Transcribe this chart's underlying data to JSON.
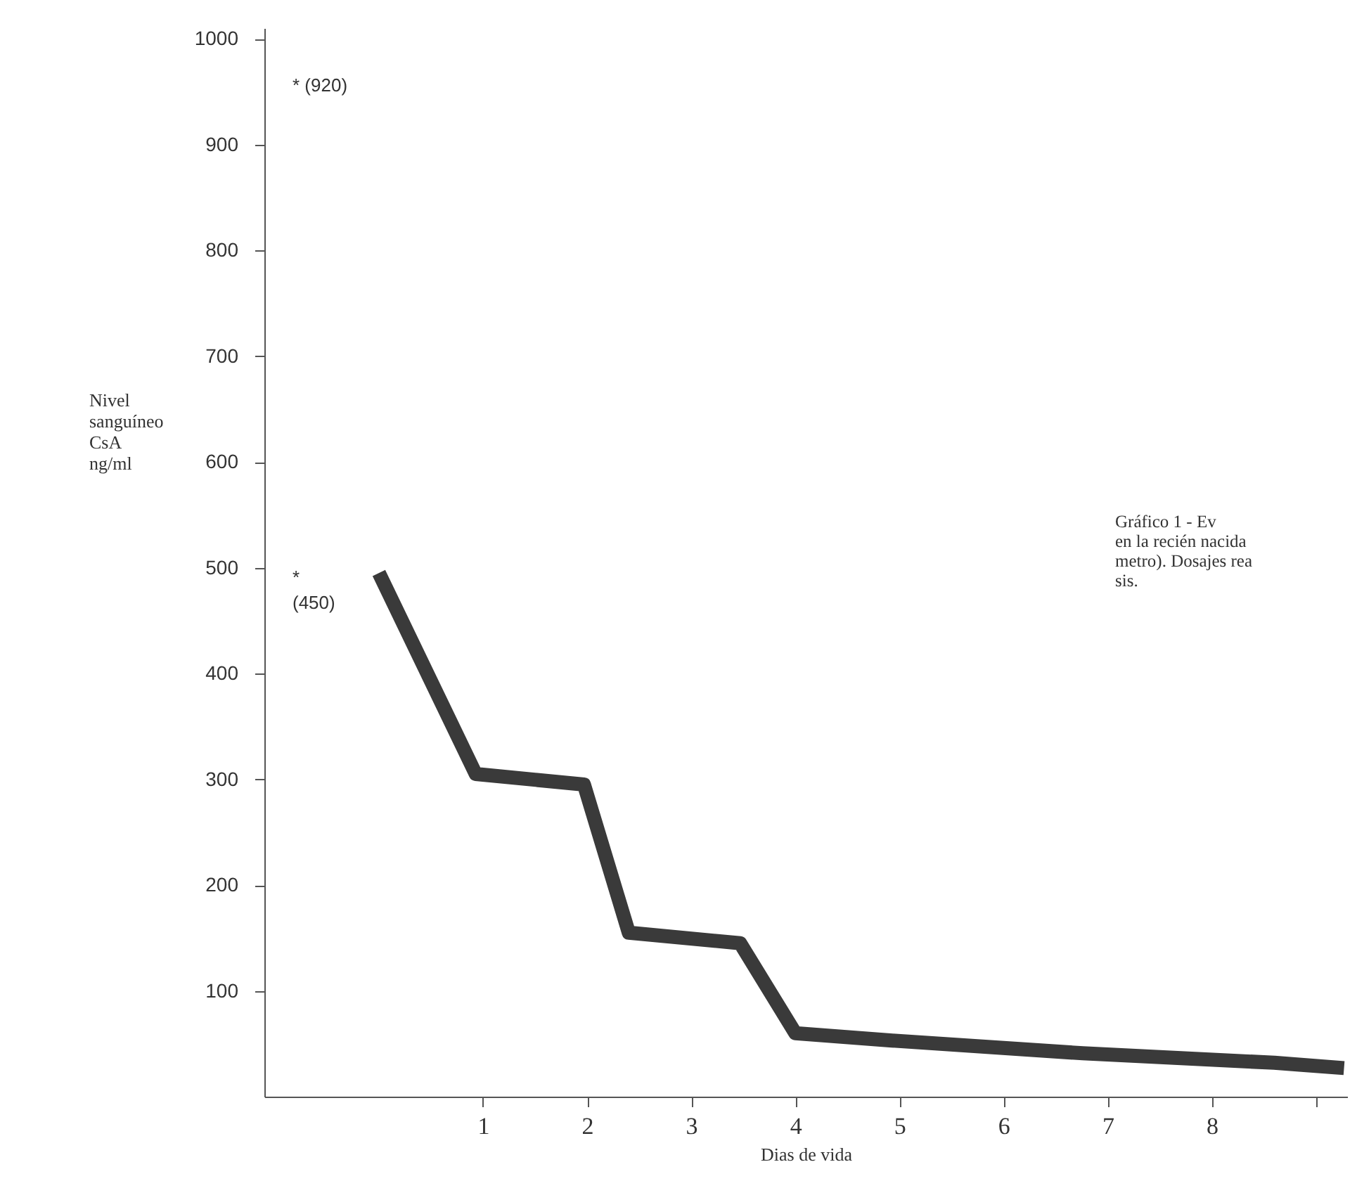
{
  "chart_data": {
    "type": "line",
    "xlabel": "Dias de vida",
    "ylabel": "Nivel\nsanguíneo\nCsA\nng/ml",
    "x": [
      0,
      0.93,
      1.97,
      2.4,
      3.47,
      4.0,
      4.93,
      6.76,
      8.6,
      9.27
    ],
    "series": [
      {
        "color": "#3a3a3a",
        "values": [
          495,
          305,
          295,
          155,
          145,
          60,
          53,
          41,
          32,
          27
        ]
      }
    ],
    "xlim": [
      -1.1,
      9.3
    ],
    "xticks": [
      1,
      2,
      3,
      4,
      5,
      6,
      7,
      8,
      {
        "value": 9,
        "label": null
      }
    ],
    "ylim": [
      0,
      1010
    ],
    "yticks": [
      100,
      200,
      300,
      400,
      500,
      600,
      700,
      800,
      900,
      1000
    ],
    "grid": false,
    "marker": "none",
    "line_style": "solid",
    "annotations": [
      "* (920)",
      "*\n(450)",
      "Gráfico 1 - Ev\nen la recién nacida\nmetro). Dosajes rea\nsis."
    ]
  }
}
